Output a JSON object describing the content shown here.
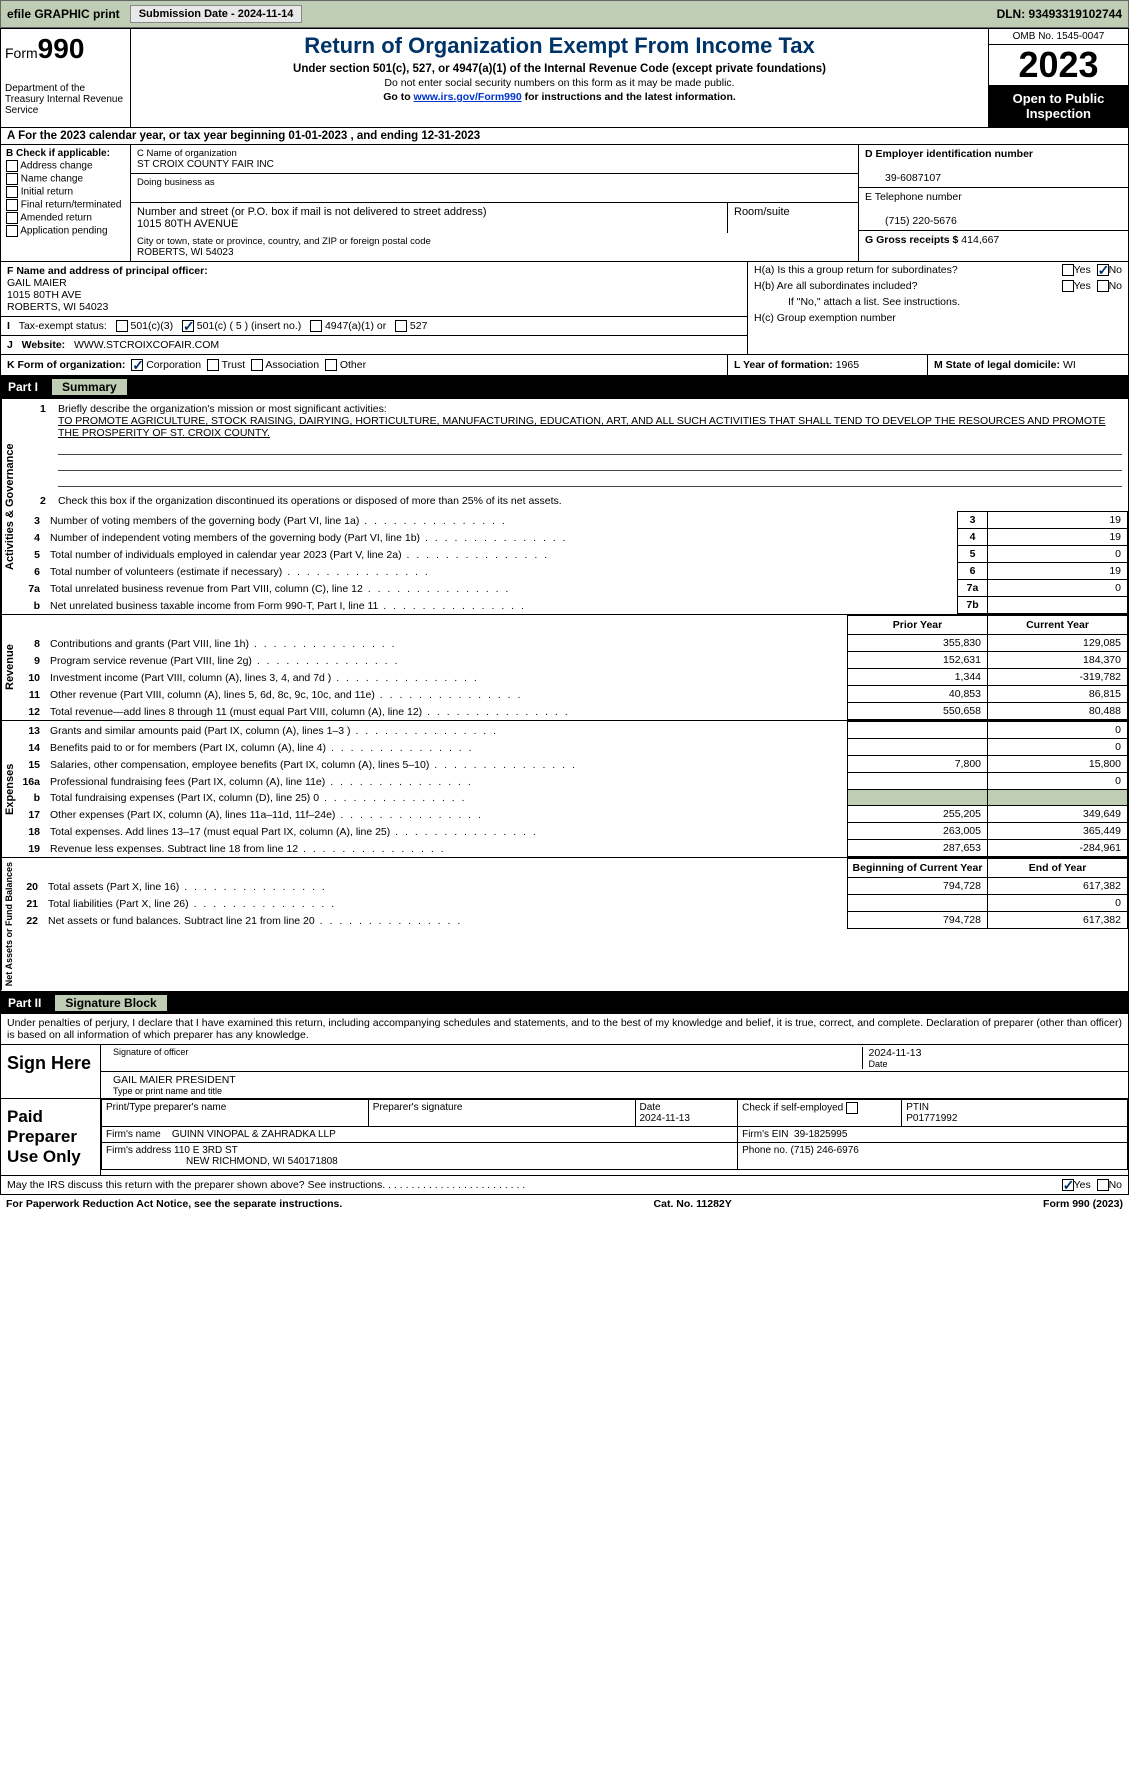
{
  "topbar": {
    "efile": "efile GRAPHIC print",
    "submission": "Submission Date - 2024-11-14",
    "dln": "DLN: 93493319102744"
  },
  "header": {
    "form": "Form",
    "form_num": "990",
    "dept": "Department of the Treasury Internal Revenue Service",
    "title": "Return of Organization Exempt From Income Tax",
    "sub1": "Under section 501(c), 527, or 4947(a)(1) of the Internal Revenue Code (except private foundations)",
    "sub2": "Do not enter social security numbers on this form as it may be made public.",
    "sub3_pre": "Go to ",
    "sub3_link": "www.irs.gov/Form990",
    "sub3_post": " for instructions and the latest information.",
    "omb": "OMB No. 1545-0047",
    "year": "2023",
    "open": "Open to Public Inspection"
  },
  "row_a": "A For the 2023 calendar year, or tax year beginning 01-01-2023    , and ending 12-31-2023",
  "col_b": {
    "title": "B Check if applicable:",
    "opts": [
      "Address change",
      "Name change",
      "Initial return",
      "Final return/terminated",
      "Amended return",
      "Application pending"
    ]
  },
  "box_c": {
    "name_lab": "C Name of organization",
    "name": "ST CROIX COUNTY FAIR INC",
    "dba_lab": "Doing business as",
    "street_lab": "Number and street (or P.O. box if mail is not delivered to street address)",
    "street": "1015 80TH AVENUE",
    "room_lab": "Room/suite",
    "city_lab": "City or town, state or province, country, and ZIP or foreign postal code",
    "city": "ROBERTS, WI  54023"
  },
  "col_de": {
    "ein_lab": "D Employer identification number",
    "ein": "39-6087107",
    "phone_lab": "E Telephone number",
    "phone": "(715) 220-5676",
    "gross_lab": "G Gross receipts $ ",
    "gross": "414,667"
  },
  "f": {
    "lab": "F Name and address of principal officer:",
    "l1": "GAIL MAIER",
    "l2": "1015 80TH AVE",
    "l3": "ROBERTS, WI  54023"
  },
  "i": {
    "lab": "Tax-exempt status:",
    "o1": "501(c)(3)",
    "o2": "501(c) ( 5 ) (insert no.)",
    "o3": "4947(a)(1) or",
    "o4": "527"
  },
  "j": {
    "lab": "Website:",
    "val": "WWW.STCROIXCOFAIR.COM"
  },
  "h": {
    "a": "H(a)  Is this a group return for subordinates?",
    "b": "H(b)  Are all subordinates included?",
    "b_note": "If \"No,\" attach a list. See instructions.",
    "c": "H(c)  Group exemption number"
  },
  "k": {
    "lab": "K Form of organization:",
    "o1": "Corporation",
    "o2": "Trust",
    "o3": "Association",
    "o4": "Other"
  },
  "l": {
    "lab": "L Year of formation: ",
    "val": "1965"
  },
  "m": {
    "lab": "M State of legal domicile: ",
    "val": "WI"
  },
  "part1": {
    "num": "Part I",
    "title": "Summary"
  },
  "p1": {
    "q1": "Briefly describe the organization's mission or most significant activities:",
    "mission": "TO PROMOTE AGRICULTURE, STOCK RAISING, DAIRYING, HORTICULTURE, MANUFACTURING, EDUCATION, ART, AND ALL SUCH ACTIVITIES THAT SHALL TEND TO DEVELOP THE RESOURCES AND PROMOTE THE PROSPERITY OF ST. CROIX COUNTY.",
    "q2": "Check this box       if the organization discontinued its operations or disposed of more than 25% of its net assets.",
    "rows_a": [
      {
        "n": "3",
        "d": "Number of voting members of the governing body (Part VI, line 1a)",
        "b": "3",
        "v": "19"
      },
      {
        "n": "4",
        "d": "Number of independent voting members of the governing body (Part VI, line 1b)",
        "b": "4",
        "v": "19"
      },
      {
        "n": "5",
        "d": "Total number of individuals employed in calendar year 2023 (Part V, line 2a)",
        "b": "5",
        "v": "0"
      },
      {
        "n": "6",
        "d": "Total number of volunteers (estimate if necessary)",
        "b": "6",
        "v": "19"
      },
      {
        "n": "7a",
        "d": "Total unrelated business revenue from Part VIII, column (C), line 12",
        "b": "7a",
        "v": "0"
      },
      {
        "n": "b",
        "d": "Net unrelated business taxable income from Form 990-T, Part I, line 11",
        "b": "7b",
        "v": ""
      }
    ],
    "hdr_prior": "Prior Year",
    "hdr_curr": "Current Year",
    "rev": [
      {
        "n": "8",
        "d": "Contributions and grants (Part VIII, line 1h)",
        "p": "355,830",
        "c": "129,085"
      },
      {
        "n": "9",
        "d": "Program service revenue (Part VIII, line 2g)",
        "p": "152,631",
        "c": "184,370"
      },
      {
        "n": "10",
        "d": "Investment income (Part VIII, column (A), lines 3, 4, and 7d )",
        "p": "1,344",
        "c": "-319,782"
      },
      {
        "n": "11",
        "d": "Other revenue (Part VIII, column (A), lines 5, 6d, 8c, 9c, 10c, and 11e)",
        "p": "40,853",
        "c": "86,815"
      },
      {
        "n": "12",
        "d": "Total revenue—add lines 8 through 11 (must equal Part VIII, column (A), line 12)",
        "p": "550,658",
        "c": "80,488"
      }
    ],
    "exp": [
      {
        "n": "13",
        "d": "Grants and similar amounts paid (Part IX, column (A), lines 1–3 )",
        "p": "",
        "c": "0"
      },
      {
        "n": "14",
        "d": "Benefits paid to or for members (Part IX, column (A), line 4)",
        "p": "",
        "c": "0"
      },
      {
        "n": "15",
        "d": "Salaries, other compensation, employee benefits (Part IX, column (A), lines 5–10)",
        "p": "7,800",
        "c": "15,800"
      },
      {
        "n": "16a",
        "d": "Professional fundraising fees (Part IX, column (A), line 11e)",
        "p": "",
        "c": "0"
      },
      {
        "n": "b",
        "d": "Total fundraising expenses (Part IX, column (D), line 25) 0",
        "p": "shade",
        "c": "shade"
      },
      {
        "n": "17",
        "d": "Other expenses (Part IX, column (A), lines 11a–11d, 11f–24e)",
        "p": "255,205",
        "c": "349,649"
      },
      {
        "n": "18",
        "d": "Total expenses. Add lines 13–17 (must equal Part IX, column (A), line 25)",
        "p": "263,005",
        "c": "365,449"
      },
      {
        "n": "19",
        "d": "Revenue less expenses. Subtract line 18 from line 12",
        "p": "287,653",
        "c": "-284,961"
      }
    ],
    "hdr_beg": "Beginning of Current Year",
    "hdr_end": "End of Year",
    "net": [
      {
        "n": "20",
        "d": "Total assets (Part X, line 16)",
        "p": "794,728",
        "c": "617,382"
      },
      {
        "n": "21",
        "d": "Total liabilities (Part X, line 26)",
        "p": "",
        "c": "0"
      },
      {
        "n": "22",
        "d": "Net assets or fund balances. Subtract line 21 from line 20",
        "p": "794,728",
        "c": "617,382"
      }
    ],
    "sec_labels": {
      "ag": "Activities & Governance",
      "rev": "Revenue",
      "exp": "Expenses",
      "net": "Net Assets or Fund Balances"
    }
  },
  "part2": {
    "num": "Part II",
    "title": "Signature Block"
  },
  "sig": {
    "decl": "Under penalties of perjury, I declare that I have examined this return, including accompanying schedules and statements, and to the best of my knowledge and belief, it is true, correct, and complete. Declaration of preparer (other than officer) is based on all information of which preparer has any knowledge.",
    "sign_here": "Sign Here",
    "sig_off_lab": "Signature of officer",
    "sig_date": "2024-11-13",
    "sig_name": "GAIL MAIER  PRESIDENT",
    "sig_name_lab": "Type or print name and title",
    "paid": "Paid Preparer Use Only",
    "pp_name_lab": "Print/Type preparer's name",
    "pp_sig_lab": "Preparer's signature",
    "pp_date_lab": "Date",
    "pp_date": "2024-11-13",
    "pp_chk": "Check        if self-employed",
    "pp_ptin_lab": "PTIN",
    "pp_ptin": "P01771992",
    "firm_name_lab": "Firm's name",
    "firm_name": "GUINN VINOPAL & ZAHRADKA LLP",
    "firm_ein_lab": "Firm's EIN",
    "firm_ein": "39-1825995",
    "firm_addr_lab": "Firm's address",
    "firm_addr1": "110 E 3RD ST",
    "firm_addr2": "NEW RICHMOND, WI  540171808",
    "firm_phone_lab": "Phone no.",
    "firm_phone": "(715) 246-6976",
    "irs_q": "May the IRS discuss this return with the preparer shown above? See instructions.  .   .   .   .   .   .   .   .   .   .   .   .   .   .   .   .   .   .   .   .   .   .   .   .",
    "yes": "Yes",
    "no": "No"
  },
  "footer": {
    "l": "For Paperwork Reduction Act Notice, see the separate instructions.",
    "c": "Cat. No. 11282Y",
    "r": "Form 990 (2023)"
  }
}
